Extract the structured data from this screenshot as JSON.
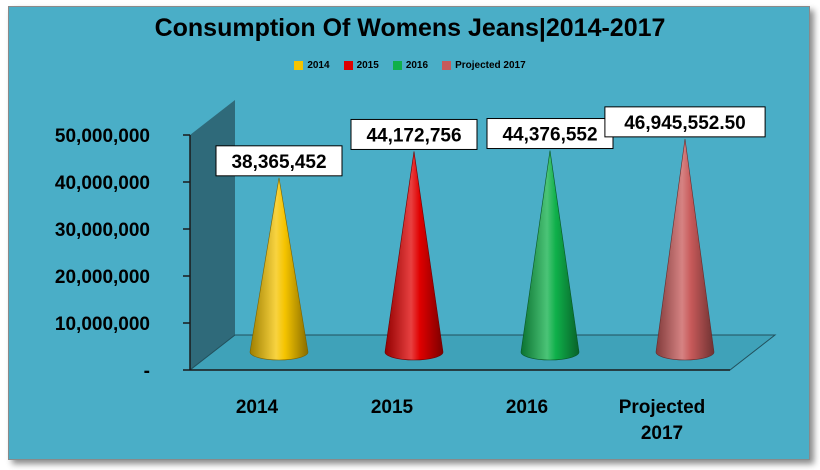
{
  "chart_data": {
    "type": "bar",
    "subtype": "3d-cone",
    "title": "Consumption Of Womens Jeans|2014-2017",
    "categories": [
      "2014",
      "2015",
      "2016",
      "Projected 2017"
    ],
    "category_labels": [
      [
        "2014"
      ],
      [
        "2015"
      ],
      [
        "2016"
      ],
      [
        "Projected",
        "2017"
      ]
    ],
    "values": [
      38365452,
      44172756,
      44376552,
      46945552.5
    ],
    "data_labels": [
      "38,365,452",
      "44,172,756",
      "44,376,552",
      "46,945,552.50"
    ],
    "colors": [
      "#f5c400",
      "#e00000",
      "#0fb04a",
      "#c85a5a"
    ],
    "legend": [
      "2014",
      "2015",
      "2016",
      "Projected 2017"
    ],
    "legend_position": "top",
    "ylim": [
      0,
      50000000
    ],
    "yticks": [
      0,
      10000000,
      20000000,
      30000000,
      40000000,
      50000000
    ],
    "ytick_labels": [
      "-",
      "10,000,000",
      "20,000,000",
      "30,000,000",
      "40,000,000",
      "50,000,000"
    ],
    "gridlines": false
  }
}
